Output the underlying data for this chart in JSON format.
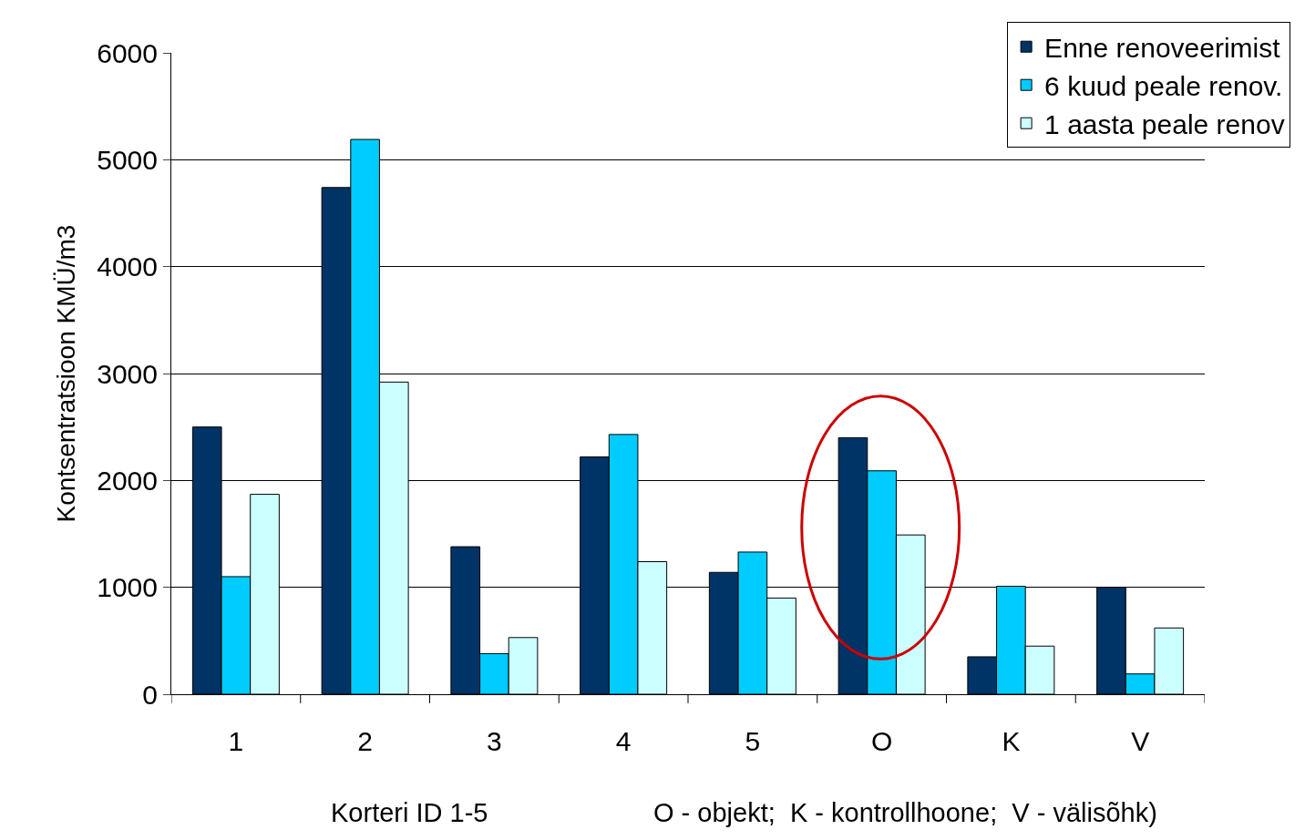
{
  "chart_data": {
    "type": "bar",
    "ylabel": "Kontsentratsioon KMÜ/m3",
    "categories": [
      "1",
      "2",
      "3",
      "4",
      "5",
      "O",
      "K",
      "V"
    ],
    "series": [
      {
        "name": "Enne renoveerimist",
        "color": "#003366",
        "values": [
          2500,
          4740,
          1380,
          2220,
          1140,
          2400,
          350,
          1000
        ]
      },
      {
        "name": "6 kuud peale renov.",
        "color": "#00ccff",
        "values": [
          1100,
          5190,
          380,
          2430,
          1330,
          2090,
          1010,
          190
        ]
      },
      {
        "name": "1 aasta peale renov",
        "color": "#ccffff",
        "values": [
          1870,
          2920,
          530,
          1240,
          900,
          1490,
          450,
          620
        ]
      }
    ],
    "ylim": [
      0,
      6000
    ],
    "yticks": [
      0,
      1000,
      2000,
      3000,
      4000,
      5000,
      6000
    ],
    "grid": "y",
    "legend": "top right",
    "annotations": [
      "Korteri ID 1-5",
      "O - objekt;  K - kontrollhoone;  V - välisõhk)"
    ]
  }
}
